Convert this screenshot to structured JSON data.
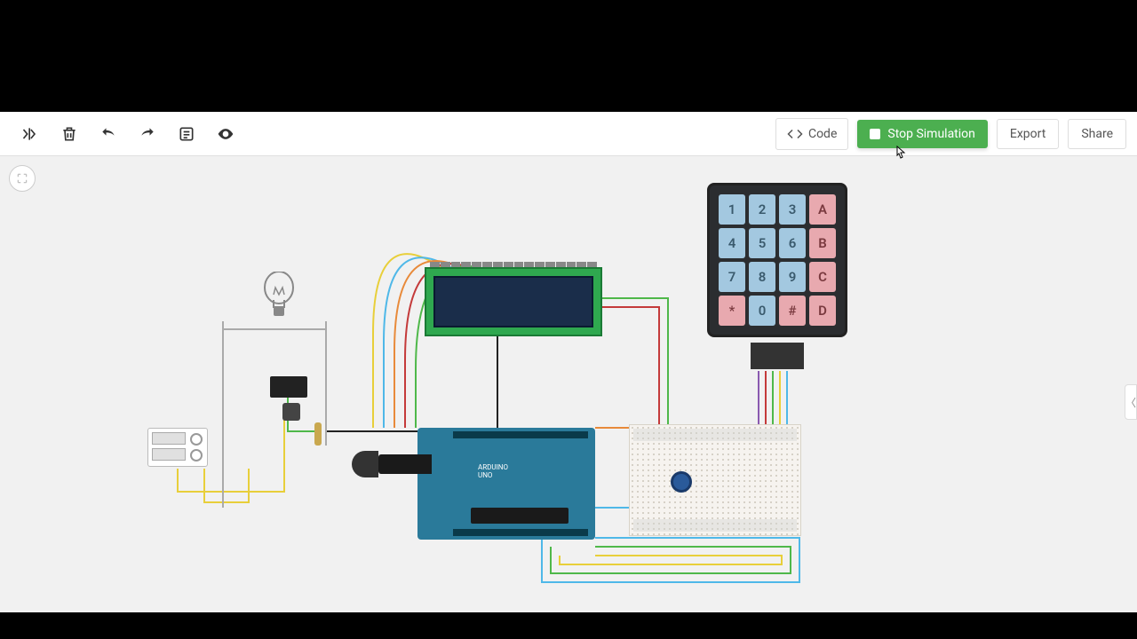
{
  "toolbar": {
    "code_label": "Code",
    "simulation_label": "Stop Simulation",
    "simulation_running": true,
    "simulation_color": "#4caf50",
    "export_label": "Export",
    "share_label": "Share"
  },
  "keypad": {
    "rows": [
      [
        "1",
        "2",
        "3",
        "A"
      ],
      [
        "4",
        "5",
        "6",
        "B"
      ],
      [
        "7",
        "8",
        "9",
        "C"
      ],
      [
        "*",
        "0",
        "#",
        "D"
      ]
    ],
    "num_bg": "#a3c8e0",
    "letter_bg": "#e8a9af",
    "case_color": "#2b2d30",
    "letter_cols": [
      3
    ]
  },
  "lcd": {
    "pcb_color": "#2fa84f",
    "screen_color": "#1a2d4a",
    "pin_count": 16,
    "text": ""
  },
  "arduino": {
    "label": "ARDUINO",
    "sublabel": "UNO",
    "board_color": "#2a7a9a"
  },
  "breadboard": {
    "color": "#f6f3ef",
    "pot_color": "#2a5a9a"
  },
  "psu": {
    "channels": 2
  },
  "wire_colors": {
    "yellow": "#e8cf3a",
    "green": "#4fb84a",
    "blue": "#4fb8e8",
    "red": "#c43a3a",
    "orange": "#e88a3a",
    "purple": "#8a5ab0",
    "black": "#222222",
    "gray": "#999999"
  },
  "canvas": {
    "background": "#f1f1f1"
  },
  "cursor": {
    "visible": true
  }
}
